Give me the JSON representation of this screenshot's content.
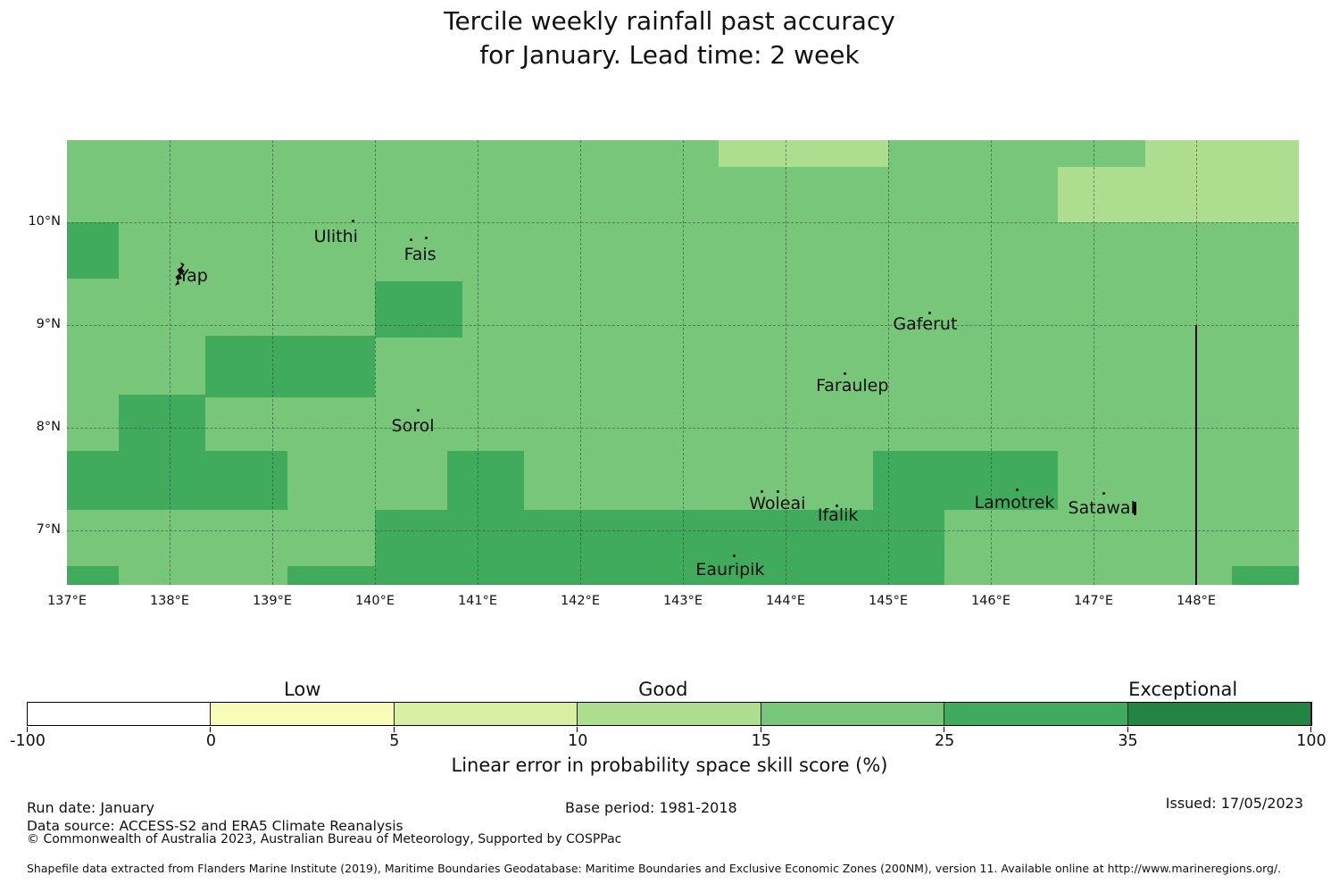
{
  "title": {
    "line1": "Tercile weekly rainfall past accuracy",
    "line2": "for January. Lead time: 2 week"
  },
  "chart_data": {
    "type": "heatmap",
    "description": "Gridded map of linear error in probability space skill score (%) over Micronesia",
    "lon_min": 137,
    "lon_max": 149,
    "lat_min": 6.47,
    "lat_max": 10.8,
    "base_value_bin": "15-25",
    "palette": {
      "base": "#78c679",
      "dark": "#41ab5d",
      "light": "#addd8e"
    },
    "grid_lons": [
      138,
      139,
      140,
      141,
      142,
      143,
      144,
      145,
      146,
      147,
      148
    ],
    "grid_lats": [
      7,
      8,
      9,
      10
    ],
    "x_ticks": [
      {
        "label": "137°E",
        "lon": 137
      },
      {
        "label": "138°E",
        "lon": 138
      },
      {
        "label": "139°E",
        "lon": 139
      },
      {
        "label": "140°E",
        "lon": 140
      },
      {
        "label": "141°E",
        "lon": 141
      },
      {
        "label": "142°E",
        "lon": 142
      },
      {
        "label": "143°E",
        "lon": 143
      },
      {
        "label": "144°E",
        "lon": 144
      },
      {
        "label": "145°E",
        "lon": 145
      },
      {
        "label": "146°E",
        "lon": 146
      },
      {
        "label": "147°E",
        "lon": 147
      },
      {
        "label": "148°E",
        "lon": 148
      }
    ],
    "y_ticks": [
      {
        "label": "10°N",
        "lat": 10
      },
      {
        "label": "9°N",
        "lat": 9
      },
      {
        "label": "8°N",
        "lat": 8
      },
      {
        "label": "7°N",
        "lat": 7
      }
    ],
    "regions": [
      {
        "lon0": 137.0,
        "lat0": 9.45,
        "lon1": 137.5,
        "lat1": 10.0,
        "level": "dark",
        "bin": "25-35"
      },
      {
        "lon0": 140.0,
        "lat0": 8.88,
        "lon1": 140.85,
        "lat1": 9.43,
        "level": "dark",
        "bin": "25-35"
      },
      {
        "lon0": 138.35,
        "lat0": 8.3,
        "lon1": 140.0,
        "lat1": 8.9,
        "level": "dark",
        "bin": "25-35"
      },
      {
        "lon0": 137.5,
        "lat0": 7.75,
        "lon1": 138.35,
        "lat1": 8.32,
        "level": "dark",
        "bin": "25-35"
      },
      {
        "lon0": 137.0,
        "lat0": 7.2,
        "lon1": 139.15,
        "lat1": 7.77,
        "level": "dark",
        "bin": "25-35"
      },
      {
        "lon0": 137.0,
        "lat0": 6.45,
        "lon1": 137.5,
        "lat1": 6.65,
        "level": "dark",
        "bin": "25-35"
      },
      {
        "lon0": 139.15,
        "lat0": 6.45,
        "lon1": 140.0,
        "lat1": 6.65,
        "level": "dark",
        "bin": "25-35"
      },
      {
        "lon0": 140.0,
        "lat0": 6.45,
        "lon1": 145.55,
        "lat1": 7.2,
        "level": "dark",
        "bin": "25-35"
      },
      {
        "lon0": 140.7,
        "lat0": 7.2,
        "lon1": 141.45,
        "lat1": 7.77,
        "level": "dark",
        "bin": "25-35"
      },
      {
        "lon0": 144.85,
        "lat0": 7.2,
        "lon1": 146.65,
        "lat1": 7.77,
        "level": "dark",
        "bin": "25-35"
      },
      {
        "lon0": 148.35,
        "lat0": 6.45,
        "lon1": 149.0,
        "lat1": 6.65,
        "level": "dark",
        "bin": "25-35"
      },
      {
        "lon0": 143.35,
        "lat0": 10.54,
        "lon1": 145.0,
        "lat1": 10.8,
        "level": "light",
        "bin": "10-15"
      },
      {
        "lon0": 146.65,
        "lat0": 10.0,
        "lon1": 149.0,
        "lat1": 10.54,
        "level": "light",
        "bin": "10-15"
      },
      {
        "lon0": 147.5,
        "lat0": 10.54,
        "lon1": 149.0,
        "lat1": 10.8,
        "level": "light",
        "bin": "10-15"
      }
    ],
    "islands": [
      {
        "name": "Yap",
        "label_lon": 138.23,
        "label_lat": 9.48,
        "dots": [],
        "squiggle": {
          "lon": 138.08,
          "lat": 9.63
        }
      },
      {
        "name": "Ulithi",
        "label_lon": 139.62,
        "label_lat": 9.86,
        "dots": [
          [
            139.79,
            10.01
          ]
        ]
      },
      {
        "name": "Fais",
        "label_lon": 140.44,
        "label_lat": 9.69,
        "dots": [
          [
            140.35,
            9.83
          ],
          [
            140.5,
            9.85
          ]
        ]
      },
      {
        "name": "Sorol",
        "label_lon": 140.37,
        "label_lat": 8.02,
        "dots": [
          [
            140.42,
            8.17
          ]
        ]
      },
      {
        "name": "Gaferut",
        "label_lon": 145.36,
        "label_lat": 9.01,
        "dots": [
          [
            145.4,
            9.12
          ]
        ]
      },
      {
        "name": "Faraulep",
        "label_lon": 144.65,
        "label_lat": 8.41,
        "dots": [
          [
            144.58,
            8.53
          ]
        ]
      },
      {
        "name": "Woleai",
        "label_lon": 143.92,
        "label_lat": 7.26,
        "dots": [
          [
            143.77,
            7.38
          ],
          [
            143.93,
            7.38
          ]
        ]
      },
      {
        "name": "Ifalik",
        "label_lon": 144.51,
        "label_lat": 7.15,
        "dots": [
          [
            144.5,
            7.24
          ]
        ]
      },
      {
        "name": "Lamotrek",
        "label_lon": 146.23,
        "label_lat": 7.27,
        "dots": [
          [
            146.26,
            7.4
          ]
        ]
      },
      {
        "name": "Satawal",
        "label_lon": 147.08,
        "label_lat": 7.22,
        "dots": [
          [
            147.1,
            7.36
          ]
        ],
        "bar": {
          "lon": 147.39,
          "lat": 7.28,
          "w": 3,
          "h": 15
        }
      },
      {
        "name": "Eauripik",
        "label_lon": 143.46,
        "label_lat": 6.62,
        "dots": [
          [
            143.5,
            6.75
          ]
        ]
      }
    ],
    "boundary_line": {
      "lon": 148,
      "lat_top": 9.0,
      "lat_bottom": 6.47
    }
  },
  "colorbar": {
    "category_labels": [
      {
        "text": "Low",
        "pct": 21.4
      },
      {
        "text": "Good",
        "pct": 49.5
      },
      {
        "text": "Exceptional",
        "pct": 90.0
      }
    ],
    "boundary_labels": [
      "-100",
      "0",
      "5",
      "10",
      "15",
      "25",
      "35",
      "100"
    ],
    "segment_colors": [
      "#ffffff",
      "#f7fcb9",
      "#d9f0a3",
      "#addd8e",
      "#78c679",
      "#41ab5d",
      "#238443"
    ],
    "axis_label": "Linear error in probability space skill score (%)"
  },
  "footer": {
    "run_date": "Run date: January",
    "data_source": "Data source: ACCESS-S2 and ERA5 Climate Reanalysis",
    "copyright": "© Commonwealth of Australia 2023, Australian Bureau of Meteorology, Supported by COSPPac",
    "base_period": "Base period: 1981-2018",
    "issued": "Issued: 17/05/2023",
    "shapefile_note": "Shapefile data extracted from Flanders Marine Institute (2019), Maritime Boundaries Geodatabase: Maritime Boundaries and Exclusive Economic Zones (200NM), version 11. Available online at http://www.marineregions.org/."
  }
}
